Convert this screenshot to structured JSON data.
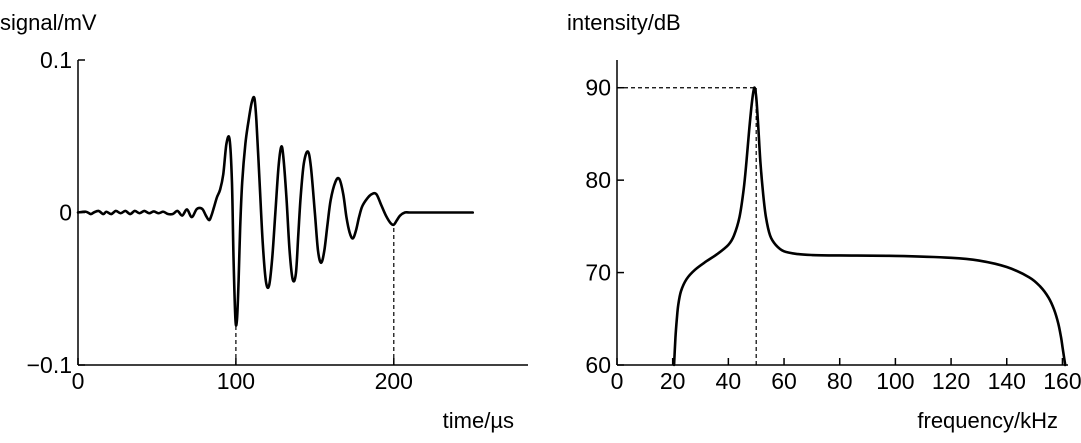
{
  "chart_data": [
    {
      "type": "line",
      "title": "",
      "xlabel": "time/µs",
      "ylabel": "signal/mV",
      "xlim": [
        0,
        285
      ],
      "ylim": [
        -0.1,
        0.1
      ],
      "xticks": [
        {
          "value": 0,
          "label": "0"
        },
        {
          "value": 100,
          "label": "100"
        },
        {
          "value": 200,
          "label": "200"
        }
      ],
      "yticks": [
        {
          "value": 0.1,
          "label": "0.1"
        },
        {
          "value": 0,
          "label": "0"
        },
        {
          "value": -0.1,
          "label": "−0.1"
        }
      ],
      "grid": false,
      "legend": "none",
      "reference_lines": [
        {
          "from": [
            100,
            -0.1
          ],
          "to": [
            100,
            -0.073
          ]
        },
        {
          "from": [
            200,
            -0.1
          ],
          "to": [
            200,
            -0.008
          ]
        }
      ],
      "series": [
        {
          "x": [
            0,
            5,
            8,
            10,
            13,
            16,
            18,
            21,
            24,
            27,
            30,
            33,
            36,
            39,
            42,
            45,
            48,
            51,
            54,
            57,
            60,
            63,
            66,
            69,
            72,
            75,
            77,
            79,
            81,
            83,
            84.5,
            86,
            88,
            90,
            92,
            94,
            96,
            97.5,
            98.5,
            99.7,
            100.7,
            101.7,
            102.7,
            104,
            106,
            108,
            110,
            111.7,
            113,
            115,
            117,
            119,
            121,
            123,
            125,
            127,
            128.7,
            130,
            132,
            134,
            136,
            138,
            139.5,
            141,
            143,
            145.5,
            147.5,
            150,
            152,
            154,
            156,
            158,
            160,
            163,
            165.5,
            168,
            170,
            172,
            174,
            176,
            178,
            180,
            183,
            186,
            189,
            192,
            195,
            198,
            200,
            202,
            204,
            207,
            210,
            220,
            230,
            240,
            250
          ],
          "y": [
            0,
            0.0005,
            -0.001,
            0,
            0.001,
            -0.001,
            0.0005,
            -0.001,
            0.001,
            -0.0005,
            0.001,
            -0.001,
            0.001,
            -0.0005,
            0.001,
            -0.0005,
            0.0007,
            -0.0005,
            0.0005,
            -0.001,
            -0.001,
            0.001,
            -0.002,
            0.002,
            -0.003,
            0.002,
            0.003,
            0.002,
            -0.002,
            -0.005,
            -0.002,
            0.003,
            0.01,
            0.015,
            0.025,
            0.045,
            0.048,
            0.02,
            -0.03,
            -0.07,
            -0.07,
            -0.045,
            -0.01,
            0.02,
            0.045,
            0.06,
            0.072,
            0.075,
            0.06,
            0.02,
            -0.02,
            -0.045,
            -0.048,
            -0.03,
            0.0,
            0.03,
            0.043,
            0.037,
            0.01,
            -0.025,
            -0.044,
            -0.04,
            -0.015,
            0.01,
            0.032,
            0.04,
            0.03,
            0.0,
            -0.025,
            -0.033,
            -0.025,
            -0.008,
            0.008,
            0.02,
            0.022,
            0.012,
            -0.003,
            -0.013,
            -0.017,
            -0.012,
            -0.003,
            0.004,
            0.009,
            0.012,
            0.012,
            0.005,
            -0.002,
            -0.007,
            -0.008,
            -0.005,
            -0.002,
            0,
            0,
            0,
            0,
            0,
            0
          ]
        }
      ]
    },
    {
      "type": "line",
      "title": "",
      "xlabel": "frequency/kHz",
      "ylabel": "intensity/dB",
      "xlim": [
        0,
        162
      ],
      "ylim": [
        60,
        93
      ],
      "xticks": [
        {
          "value": 0,
          "label": "0"
        },
        {
          "value": 20,
          "label": "20"
        },
        {
          "value": 40,
          "label": "40"
        },
        {
          "value": 60,
          "label": "60"
        },
        {
          "value": 80,
          "label": "80"
        },
        {
          "value": 100,
          "label": "100"
        },
        {
          "value": 120,
          "label": "120"
        },
        {
          "value": 140,
          "label": "140"
        },
        {
          "value": 160,
          "label": "160"
        }
      ],
      "yticks": [
        {
          "value": 60,
          "label": "60"
        },
        {
          "value": 70,
          "label": "70"
        },
        {
          "value": 80,
          "label": "80"
        },
        {
          "value": 90,
          "label": "90"
        }
      ],
      "grid": false,
      "legend": "none",
      "reference_lines": [
        {
          "from": [
            0,
            90
          ],
          "to": [
            50,
            90
          ]
        },
        {
          "from": [
            50,
            60
          ],
          "to": [
            50,
            90
          ]
        }
      ],
      "series": [
        {
          "x": [
            20.5,
            21,
            21.5,
            22,
            23,
            25,
            28,
            32,
            36,
            40,
            42,
            44,
            45.5,
            46.5,
            47.5,
            48.5,
            49.3,
            50,
            50.7,
            51.5,
            52.5,
            53.5,
            55,
            57,
            60,
            65,
            70,
            80,
            100,
            120,
            130,
            140,
            148,
            152,
            155,
            157,
            158.5,
            159.5,
            160,
            160.5,
            161
          ],
          "y": [
            60,
            63,
            65,
            66.5,
            68,
            69.3,
            70.3,
            71.2,
            72,
            73,
            74,
            76,
            79,
            82,
            85.5,
            88.5,
            90,
            89,
            86,
            82,
            78.5,
            76,
            74,
            73,
            72.3,
            72,
            71.9,
            71.85,
            71.8,
            71.6,
            71.3,
            70.6,
            69.5,
            68.5,
            67.3,
            66,
            64.5,
            63,
            62,
            61,
            60
          ]
        }
      ]
    }
  ]
}
